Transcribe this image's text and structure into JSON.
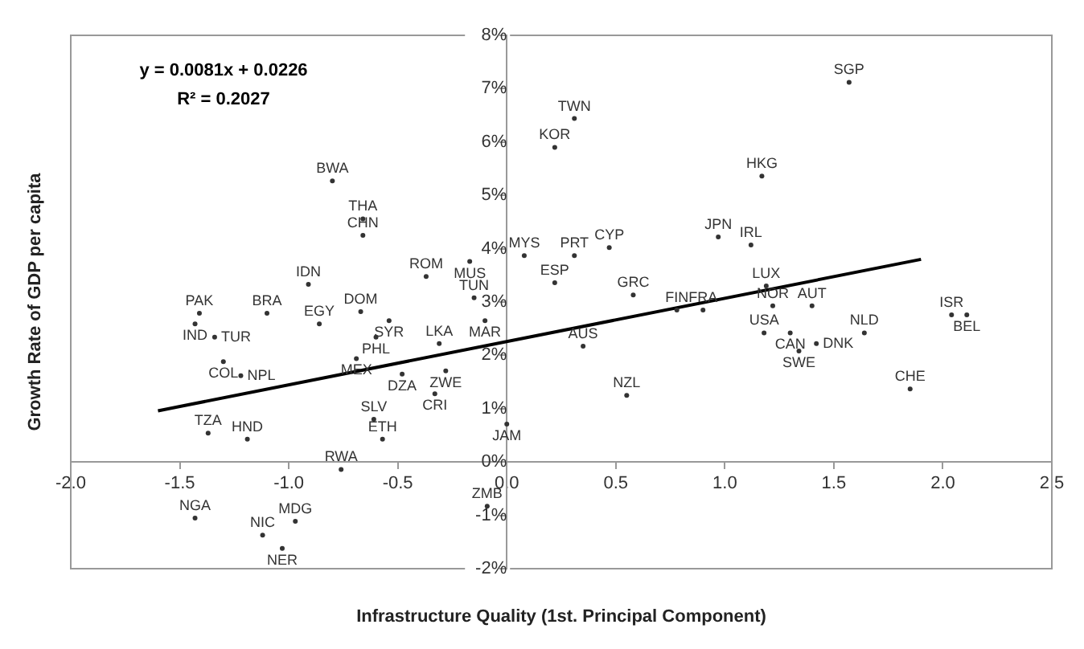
{
  "chart_data": {
    "type": "scatter",
    "xlabel": "Infrastructure Quality (1st. Principal Component)",
    "ylabel": "Growth Rate of GDP per capita",
    "xlim": [
      -2,
      2.5
    ],
    "xticks": [
      {
        "value": -2,
        "label": "-2.0"
      },
      {
        "value": -1.5,
        "label": "-1.5"
      },
      {
        "value": -1,
        "label": "-1.0"
      },
      {
        "value": -0.5,
        "label": "-0.5"
      },
      {
        "value": 0,
        "label": "0.0"
      },
      {
        "value": 0.5,
        "label": "0.5"
      },
      {
        "value": 1,
        "label": "1.0"
      },
      {
        "value": 1.5,
        "label": "1.5"
      },
      {
        "value": 2,
        "label": "2.0"
      },
      {
        "value": 2.5,
        "label": "2.5"
      }
    ],
    "ylim": [
      -2,
      8
    ],
    "yticks": [
      {
        "value": -2,
        "label": "-2%"
      },
      {
        "value": -1,
        "label": "-1%"
      },
      {
        "value": 0,
        "label": "0%"
      },
      {
        "value": 1,
        "label": "1%"
      },
      {
        "value": 2,
        "label": "2%"
      },
      {
        "value": 3,
        "label": "3%"
      },
      {
        "value": 4,
        "label": "4%"
      },
      {
        "value": 5,
        "label": "5%"
      },
      {
        "value": 6,
        "label": "6%"
      },
      {
        "value": 7,
        "label": "7%"
      },
      {
        "value": 8,
        "label": "8%"
      }
    ],
    "grid": false,
    "legend": false,
    "series": [
      {
        "type": "scatter",
        "color": "#333333",
        "marker": "circle",
        "x": [
          1.57,
          0.31,
          0.22,
          1.17,
          -0.8,
          -0.66,
          -0.66,
          0.97,
          1.12,
          0.47,
          0.31,
          0.08,
          -0.17,
          -0.37,
          0.22,
          -0.91,
          0.58,
          -0.15,
          1.19,
          0.78,
          0.9,
          1.22,
          1.4,
          2.04,
          2.11,
          1.64,
          1.18,
          1.3,
          1.34,
          1.42,
          -1.41,
          -1.43,
          -1.1,
          -1.34,
          -0.86,
          -0.67,
          -0.54,
          -0.6,
          -1.3,
          -1.22,
          -0.69,
          -0.1,
          -0.31,
          -0.28,
          -0.48,
          -0.33,
          0.0,
          0.35,
          0.55,
          1.85,
          -1.37,
          -0.61,
          -0.57,
          -1.19,
          -0.76,
          -0.09,
          -1.43,
          -0.97,
          -1.12,
          -1.03
        ],
        "values": [
          7.12,
          6.44,
          5.9,
          5.36,
          5.27,
          4.56,
          4.25,
          4.22,
          4.07,
          4.02,
          3.87,
          3.87,
          3.76,
          3.48,
          3.36,
          3.33,
          3.13,
          3.08,
          3.3,
          2.85,
          2.85,
          2.93,
          2.93,
          2.76,
          2.76,
          2.42,
          2.42,
          2.42,
          2.08,
          2.22,
          2.79,
          2.59,
          2.79,
          2.34,
          2.59,
          2.82,
          2.65,
          2.34,
          1.88,
          1.62,
          1.94,
          2.65,
          2.22,
          1.71,
          1.65,
          1.28,
          0.71,
          2.17,
          1.25,
          1.37,
          0.54,
          0.8,
          0.43,
          0.43,
          -0.14,
          -0.83,
          -1.05,
          -1.11,
          -1.37,
          -1.62
        ],
        "value_labels": [
          "SGP",
          "TWN",
          "KOR",
          "HKG",
          "BWA",
          "THA",
          "CHN",
          "JPN",
          "IRL",
          "CYP",
          "PRT",
          "MYS",
          "MUS",
          "ROM",
          "ESP",
          "IDN",
          "GRC",
          "TUN",
          "LUX",
          "FIN",
          "FRA",
          "NOR",
          "AUT",
          "ISR",
          "BEL",
          "NLD",
          "USA",
          "CAN",
          "SWE",
          "DNK",
          "PAK",
          "IND",
          "BRA",
          "TUR",
          "EGY",
          "DOM",
          "SYR",
          "PHL",
          "COL",
          "NPL",
          "MEX",
          "MAR",
          "LKA",
          "ZWE",
          "DZA",
          "CRI",
          "JAM",
          "AUS",
          "NZL",
          "CHE",
          "TZA",
          "SLV",
          "ETH",
          "HND",
          "RWA",
          "ZMB",
          "NGA",
          "MDG",
          "NIC",
          "NER"
        ]
      },
      {
        "type": "line",
        "color": "#000000",
        "x": [
          -1.6,
          1.9
        ],
        "values": [
          0.96,
          3.8
        ]
      }
    ],
    "annotations": [
      "y = 0.0081x + 0.0226",
      "R² = 0.2027"
    ]
  }
}
